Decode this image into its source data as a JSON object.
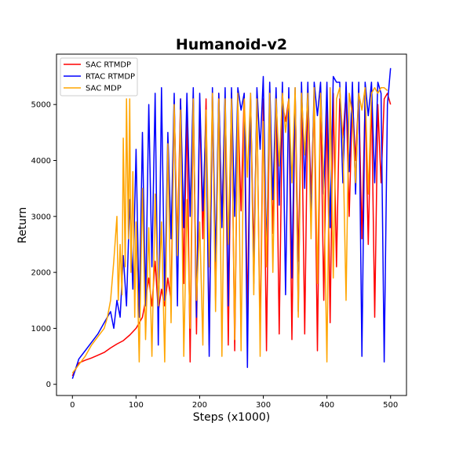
{
  "chart_data": {
    "type": "line",
    "title": "Humanoid-v2",
    "xlabel": "Steps (x1000)",
    "ylabel": "Return",
    "xlim": [
      -25,
      525
    ],
    "ylim": [
      -200,
      5900
    ],
    "xticks": [
      0,
      100,
      200,
      300,
      400,
      500
    ],
    "yticks": [
      0,
      1000,
      2000,
      3000,
      4000,
      5000
    ],
    "grid": false,
    "legend_position": "top-left",
    "series": [
      {
        "name": "SAC RTMDP",
        "color": "#ff0000",
        "x": [
          0,
          10,
          20,
          30,
          40,
          50,
          60,
          70,
          80,
          90,
          100,
          110,
          115,
          120,
          125,
          130,
          135,
          140,
          145,
          150,
          155,
          160,
          165,
          170,
          175,
          180,
          185,
          190,
          195,
          200,
          205,
          210,
          215,
          220,
          225,
          230,
          235,
          240,
          245,
          250,
          255,
          260,
          265,
          270,
          275,
          280,
          285,
          290,
          295,
          300,
          305,
          310,
          315,
          320,
          325,
          330,
          335,
          340,
          345,
          350,
          355,
          360,
          365,
          370,
          375,
          380,
          385,
          390,
          395,
          400,
          405,
          410,
          415,
          420,
          425,
          430,
          435,
          440,
          445,
          450,
          455,
          460,
          465,
          470,
          475,
          480,
          485,
          490,
          495,
          500
        ],
        "y": [
          150,
          380,
          430,
          470,
          520,
          570,
          650,
          720,
          780,
          880,
          1000,
          1200,
          1500,
          1900,
          1400,
          2200,
          1300,
          1700,
          1400,
          1900,
          1500,
          5000,
          2500,
          5100,
          1800,
          4900,
          400,
          5100,
          900,
          5000,
          2600,
          5100,
          700,
          5200,
          1500,
          5200,
          2900,
          5100,
          700,
          5200,
          600,
          5000,
          3100,
          5200,
          1200,
          5100,
          2300,
          5000,
          800,
          5100,
          600,
          5200,
          2700,
          5100,
          900,
          5000,
          4700,
          5100,
          800,
          5200,
          2200,
          5100,
          900,
          5200,
          3400,
          5100,
          600,
          5200,
          1500,
          5000,
          1100,
          5200,
          2100,
          5100,
          4400,
          5200,
          3000,
          5100,
          4000,
          5200,
          2600,
          5100,
          2500,
          5200,
          1200,
          5000,
          3600,
          5100,
          5200,
          5000
        ]
      },
      {
        "name": "RTAC RTMDP",
        "color": "#0000ff",
        "x": [
          0,
          10,
          20,
          30,
          40,
          50,
          60,
          65,
          70,
          75,
          80,
          85,
          90,
          95,
          100,
          105,
          110,
          115,
          120,
          125,
          130,
          135,
          140,
          145,
          150,
          155,
          160,
          165,
          170,
          175,
          180,
          185,
          190,
          195,
          200,
          205,
          210,
          215,
          220,
          225,
          230,
          235,
          240,
          245,
          250,
          255,
          260,
          265,
          270,
          275,
          280,
          285,
          290,
          295,
          300,
          305,
          310,
          315,
          320,
          325,
          330,
          335,
          340,
          345,
          350,
          355,
          360,
          365,
          370,
          375,
          380,
          385,
          390,
          395,
          400,
          405,
          410,
          415,
          420,
          425,
          430,
          435,
          440,
          445,
          450,
          455,
          460,
          465,
          470,
          475,
          480,
          485,
          490,
          495,
          500
        ],
        "y": [
          100,
          450,
          600,
          750,
          900,
          1100,
          1300,
          1000,
          1500,
          1200,
          2300,
          1400,
          3300,
          1700,
          4200,
          1200,
          4500,
          1400,
          5000,
          2100,
          5200,
          700,
          5300,
          1500,
          4500,
          2600,
          5200,
          1400,
          5100,
          2800,
          5200,
          3000,
          5300,
          1200,
          5200,
          3100,
          4800,
          500,
          5300,
          2200,
          5200,
          2800,
          5300,
          1400,
          5300,
          3000,
          5300,
          4900,
          5200,
          300,
          5200,
          1800,
          5300,
          4200,
          5500,
          2300,
          5400,
          3300,
          5300,
          3200,
          5400,
          1600,
          5300,
          1900,
          5300,
          1300,
          5400,
          3500,
          5400,
          2900,
          5400,
          4800,
          5400,
          3400,
          5400,
          2800,
          5500,
          5400,
          5400,
          3600,
          5400,
          3800,
          5400,
          3400,
          5400,
          500,
          5400,
          4800,
          5400,
          3600,
          5400,
          5200,
          400,
          5000,
          5650
        ]
      },
      {
        "name": "SAC MDP",
        "color": "#ffa500",
        "x": [
          0,
          10,
          20,
          30,
          40,
          50,
          55,
          60,
          65,
          70,
          72,
          75,
          78,
          80,
          83,
          85,
          88,
          90,
          92,
          95,
          98,
          100,
          105,
          110,
          115,
          120,
          125,
          130,
          135,
          140,
          145,
          150,
          155,
          160,
          165,
          170,
          175,
          180,
          185,
          190,
          195,
          200,
          205,
          210,
          215,
          220,
          225,
          230,
          235,
          240,
          245,
          250,
          255,
          260,
          265,
          270,
          275,
          280,
          285,
          290,
          295,
          300,
          305,
          310,
          315,
          320,
          325,
          330,
          335,
          340,
          345,
          350,
          355,
          360,
          365,
          370,
          375,
          380,
          385,
          390,
          395,
          400,
          405,
          410,
          415,
          420,
          425,
          430,
          435,
          440,
          445,
          450,
          455,
          460,
          465,
          470,
          475,
          480,
          485,
          490,
          495
        ],
        "y": [
          200,
          350,
          500,
          700,
          850,
          1000,
          1200,
          1500,
          2200,
          3000,
          1500,
          2500,
          1600,
          4400,
          2100,
          5100,
          2600,
          5100,
          2000,
          3800,
          1200,
          2900,
          400,
          3500,
          800,
          2800,
          500,
          3400,
          1400,
          2900,
          400,
          4300,
          1100,
          5000,
          2300,
          4900,
          500,
          3300,
          1000,
          5100,
          1500,
          2900,
          700,
          4900,
          2100,
          5200,
          1300,
          5100,
          500,
          5100,
          2500,
          5100,
          800,
          5200,
          600,
          5100,
          3700,
          5200,
          1600,
          5100,
          500,
          4700,
          2100,
          5200,
          2000,
          5100,
          3900,
          5200,
          4500,
          5100,
          3600,
          5300,
          1200,
          5200,
          4100,
          5200,
          2600,
          5300,
          1800,
          5200,
          3600,
          400,
          5300,
          1900,
          5100,
          5300,
          4400,
          1500,
          5200,
          4800,
          3600,
          5200,
          4900,
          5300,
          3400,
          5200,
          5300,
          5200,
          5300,
          5300,
          5250
        ]
      }
    ]
  }
}
